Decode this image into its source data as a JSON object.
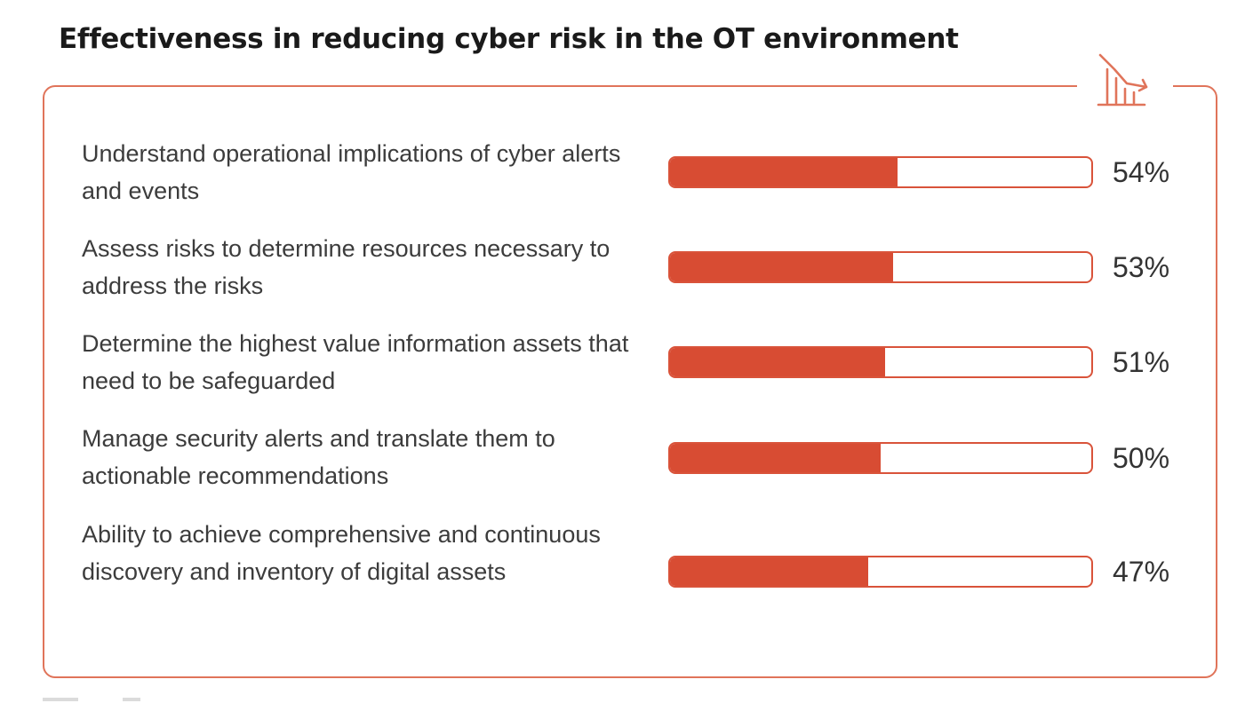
{
  "chart_data": {
    "type": "bar",
    "orientation": "horizontal",
    "title": "Effectiveness in reducing cyber risk in the OT environment",
    "categories": [
      "Understand operational implications of cyber alerts and events",
      "Assess risks to determine resources necessary to address the risks",
      "Determine the highest value information assets that need to be safeguarded",
      "Manage security alerts and translate them to actionable recommendations",
      "Ability to achieve comprehensive and continuous discovery and inventory of digital assets"
    ],
    "values": [
      54,
      53,
      51,
      50,
      47
    ],
    "value_labels": [
      "54%",
      "53%",
      "51%",
      "50%",
      "47%"
    ],
    "xlim": [
      0,
      100
    ],
    "grid": false,
    "colors": {
      "bar": "#d84c33",
      "border": "#e0745a",
      "text": "#3c3c3c"
    }
  },
  "icons": {
    "header_icon": "declining-bar-chart-icon"
  }
}
